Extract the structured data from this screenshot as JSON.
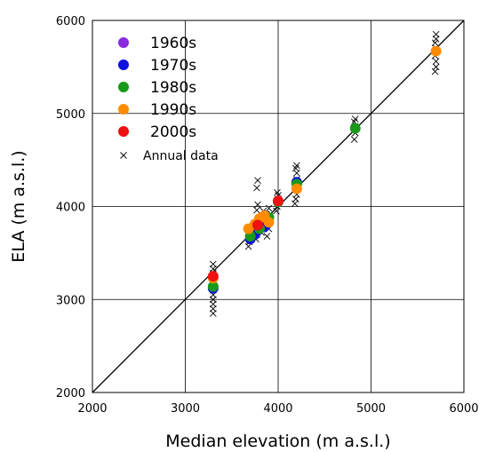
{
  "chart_data": {
    "type": "scatter",
    "title": "",
    "xlabel": "Median elevation (m a.s.l.)",
    "ylabel": "ELA (m a.s.l.)",
    "xlim": [
      2000,
      6000
    ],
    "ylim": [
      2000,
      6000
    ],
    "xticks": [
      2000,
      3000,
      4000,
      5000,
      6000
    ],
    "yticks": [
      2000,
      3000,
      4000,
      5000,
      6000
    ],
    "xtick_labels": [
      "2000",
      "3000",
      "4000",
      "5000",
      "6000"
    ],
    "ytick_labels": [
      "2000",
      "3000",
      "4000",
      "5000",
      "6000"
    ],
    "grid": true,
    "legend_position": "top-left",
    "reference_line": {
      "from": [
        2000,
        2000
      ],
      "to": [
        6000,
        6000
      ]
    },
    "series": [
      {
        "name": "1960s",
        "color": "#8a2be2",
        "marker": "circle",
        "points": [
          [
            3780,
            3740
          ],
          [
            3850,
            3800
          ]
        ]
      },
      {
        "name": "1970s",
        "color": "#1010e0",
        "marker": "circle",
        "points": [
          [
            3300,
            3120
          ],
          [
            3700,
            3650
          ],
          [
            3750,
            3700
          ],
          [
            3850,
            3780
          ],
          [
            4200,
            4260
          ]
        ]
      },
      {
        "name": "1980s",
        "color": "#1a9a1a",
        "marker": "circle",
        "points": [
          [
            3300,
            3140
          ],
          [
            3700,
            3680
          ],
          [
            3800,
            3760
          ],
          [
            3900,
            3880
          ],
          [
            4000,
            4050
          ],
          [
            4200,
            4240
          ],
          [
            4830,
            4840
          ]
        ]
      },
      {
        "name": "1990s",
        "color": "#ff8c00",
        "marker": "circle",
        "points": [
          [
            3300,
            3230
          ],
          [
            3680,
            3760
          ],
          [
            3750,
            3810
          ],
          [
            3800,
            3870
          ],
          [
            3850,
            3900
          ],
          [
            3900,
            3830
          ],
          [
            4200,
            4190
          ],
          [
            5700,
            5670
          ]
        ]
      },
      {
        "name": "2000s",
        "color": "#ee1111",
        "marker": "circle",
        "points": [
          [
            3300,
            3250
          ],
          [
            3780,
            3800
          ],
          [
            4000,
            4060
          ]
        ]
      },
      {
        "name": "Annual data",
        "color": "#000000",
        "marker": "x",
        "points": [
          [
            3300,
            2850
          ],
          [
            3300,
            2900
          ],
          [
            3300,
            2950
          ],
          [
            3300,
            3000
          ],
          [
            3300,
            3050
          ],
          [
            3300,
            3100
          ],
          [
            3300,
            3150
          ],
          [
            3300,
            3200
          ],
          [
            3300,
            3280
          ],
          [
            3300,
            3330
          ],
          [
            3300,
            3380
          ],
          [
            3680,
            3570
          ],
          [
            3690,
            3620
          ],
          [
            3700,
            3680
          ],
          [
            3710,
            3730
          ],
          [
            3700,
            3780
          ],
          [
            3760,
            3650
          ],
          [
            3770,
            3700
          ],
          [
            3780,
            3860
          ],
          [
            3770,
            3960
          ],
          [
            3780,
            4020
          ],
          [
            3770,
            4200
          ],
          [
            3780,
            4280
          ],
          [
            3820,
            3720
          ],
          [
            3830,
            3820
          ],
          [
            3850,
            3900
          ],
          [
            3840,
            3950
          ],
          [
            3880,
            3680
          ],
          [
            3900,
            3760
          ],
          [
            3900,
            3850
          ],
          [
            3920,
            3920
          ],
          [
            3900,
            3980
          ],
          [
            3980,
            3950
          ],
          [
            3990,
            4000
          ],
          [
            4000,
            4080
          ],
          [
            4000,
            4120
          ],
          [
            3990,
            4150
          ],
          [
            4180,
            4030
          ],
          [
            4190,
            4080
          ],
          [
            4200,
            4130
          ],
          [
            4200,
            4180
          ],
          [
            4190,
            4240
          ],
          [
            4200,
            4290
          ],
          [
            4200,
            4360
          ],
          [
            4190,
            4410
          ],
          [
            4200,
            4440
          ],
          [
            4820,
            4720
          ],
          [
            4830,
            4790
          ],
          [
            4830,
            4860
          ],
          [
            4820,
            4910
          ],
          [
            4830,
            4940
          ],
          [
            5690,
            5450
          ],
          [
            5700,
            5500
          ],
          [
            5700,
            5560
          ],
          [
            5690,
            5620
          ],
          [
            5700,
            5700
          ],
          [
            5690,
            5760
          ],
          [
            5700,
            5800
          ],
          [
            5700,
            5850
          ]
        ]
      }
    ],
    "legend": [
      {
        "label": "1960s",
        "color": "#8a2be2",
        "marker": "circle"
      },
      {
        "label": "1970s",
        "color": "#1010e0",
        "marker": "circle"
      },
      {
        "label": "1980s",
        "color": "#1a9a1a",
        "marker": "circle"
      },
      {
        "label": "1990s",
        "color": "#ff8c00",
        "marker": "circle"
      },
      {
        "label": "2000s",
        "color": "#ee1111",
        "marker": "circle"
      },
      {
        "label": "Annual data",
        "color": "#000000",
        "marker": "x"
      }
    ]
  }
}
